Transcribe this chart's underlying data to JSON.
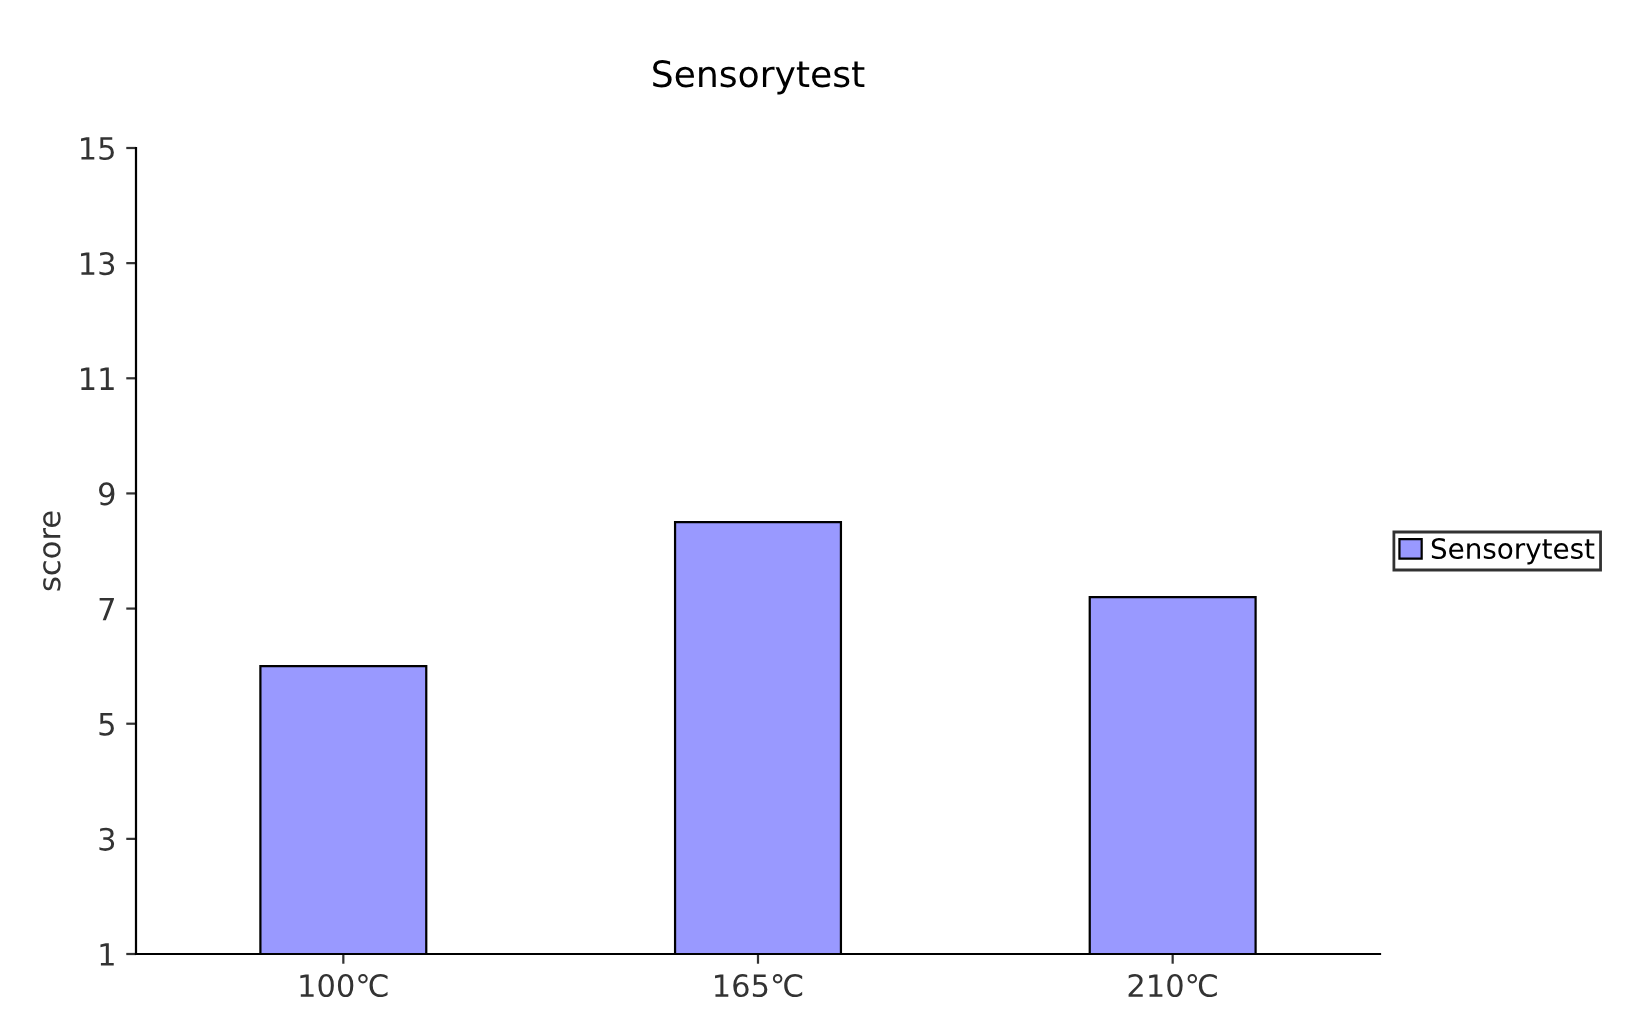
{
  "chart_data": {
    "type": "bar",
    "title": "Sensorytest",
    "ylabel": "score",
    "categories": [
      "100℃",
      "165℃",
      "210℃"
    ],
    "series": [
      {
        "name": "Sensorytest",
        "color": "#9999ff",
        "values": [
          6.0,
          8.5,
          7.2
        ]
      }
    ],
    "ylim": [
      1,
      15
    ],
    "yticks": [
      1,
      3,
      5,
      7,
      9,
      11,
      13,
      15
    ],
    "grid": false,
    "legend": "right"
  }
}
